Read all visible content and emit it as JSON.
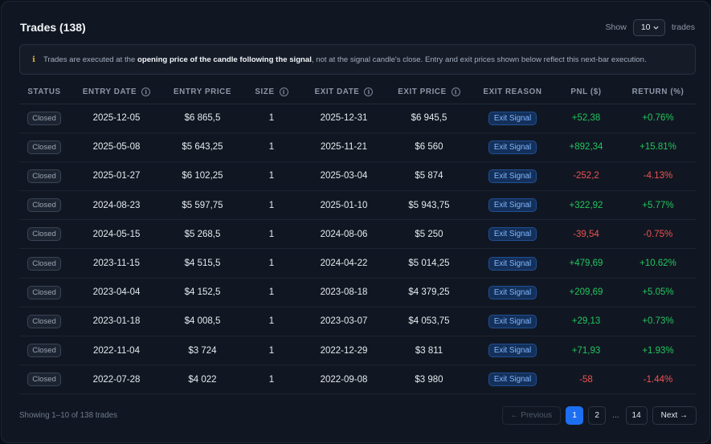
{
  "header": {
    "title": "Trades (138)",
    "show_label": "Show",
    "page_size": "10",
    "trades_label": "trades"
  },
  "notice": {
    "icon": "info-icon",
    "text_before": "Trades are executed at the ",
    "text_bold": "opening price of the candle following the signal",
    "text_after": ", not at the signal candle's close. Entry and exit prices shown below reflect this next-bar execution."
  },
  "table": {
    "columns": [
      "STATUS",
      "ENTRY DATE",
      "ENTRY PRICE",
      "SIZE",
      "EXIT DATE",
      "EXIT PRICE",
      "EXIT REASON",
      "PNL ($)",
      "RETURN (%)"
    ],
    "rows": [
      {
        "status": "Closed",
        "entry_date": "2025-12-05",
        "entry_price": "$6 865,5",
        "size": "1",
        "exit_date": "2025-12-31",
        "exit_price": "$6 945,5",
        "exit_reason": "Exit Signal",
        "pnl": "+52,38",
        "ret": "+0.76%",
        "sign": "pos"
      },
      {
        "status": "Closed",
        "entry_date": "2025-05-08",
        "entry_price": "$5 643,25",
        "size": "1",
        "exit_date": "2025-11-21",
        "exit_price": "$6 560",
        "exit_reason": "Exit Signal",
        "pnl": "+892,34",
        "ret": "+15.81%",
        "sign": "pos"
      },
      {
        "status": "Closed",
        "entry_date": "2025-01-27",
        "entry_price": "$6 102,25",
        "size": "1",
        "exit_date": "2025-03-04",
        "exit_price": "$5 874",
        "exit_reason": "Exit Signal",
        "pnl": "-252,2",
        "ret": "-4.13%",
        "sign": "neg"
      },
      {
        "status": "Closed",
        "entry_date": "2024-08-23",
        "entry_price": "$5 597,75",
        "size": "1",
        "exit_date": "2025-01-10",
        "exit_price": "$5 943,75",
        "exit_reason": "Exit Signal",
        "pnl": "+322,92",
        "ret": "+5.77%",
        "sign": "pos"
      },
      {
        "status": "Closed",
        "entry_date": "2024-05-15",
        "entry_price": "$5 268,5",
        "size": "1",
        "exit_date": "2024-08-06",
        "exit_price": "$5 250",
        "exit_reason": "Exit Signal",
        "pnl": "-39,54",
        "ret": "-0.75%",
        "sign": "neg"
      },
      {
        "status": "Closed",
        "entry_date": "2023-11-15",
        "entry_price": "$4 515,5",
        "size": "1",
        "exit_date": "2024-04-22",
        "exit_price": "$5 014,25",
        "exit_reason": "Exit Signal",
        "pnl": "+479,69",
        "ret": "+10.62%",
        "sign": "pos"
      },
      {
        "status": "Closed",
        "entry_date": "2023-04-04",
        "entry_price": "$4 152,5",
        "size": "1",
        "exit_date": "2023-08-18",
        "exit_price": "$4 379,25",
        "exit_reason": "Exit Signal",
        "pnl": "+209,69",
        "ret": "+5.05%",
        "sign": "pos"
      },
      {
        "status": "Closed",
        "entry_date": "2023-01-18",
        "entry_price": "$4 008,5",
        "size": "1",
        "exit_date": "2023-03-07",
        "exit_price": "$4 053,75",
        "exit_reason": "Exit Signal",
        "pnl": "+29,13",
        "ret": "+0.73%",
        "sign": "pos"
      },
      {
        "status": "Closed",
        "entry_date": "2022-11-04",
        "entry_price": "$3 724",
        "size": "1",
        "exit_date": "2022-12-29",
        "exit_price": "$3 811",
        "exit_reason": "Exit Signal",
        "pnl": "+71,93",
        "ret": "+1.93%",
        "sign": "pos"
      },
      {
        "status": "Closed",
        "entry_date": "2022-07-28",
        "entry_price": "$4 022",
        "size": "1",
        "exit_date": "2022-09-08",
        "exit_price": "$3 980",
        "exit_reason": "Exit Signal",
        "pnl": "-58",
        "ret": "-1.44%",
        "sign": "neg"
      }
    ]
  },
  "footer": {
    "showing": "Showing 1–10 of 138 trades",
    "prev_label": "← Previous",
    "page_1": "1",
    "page_2": "2",
    "ellipsis": "...",
    "page_last": "14",
    "next_label": "Next →"
  },
  "colors": {
    "positive": "#22c55e",
    "negative": "#f05252",
    "accent": "#1d6ff2"
  }
}
